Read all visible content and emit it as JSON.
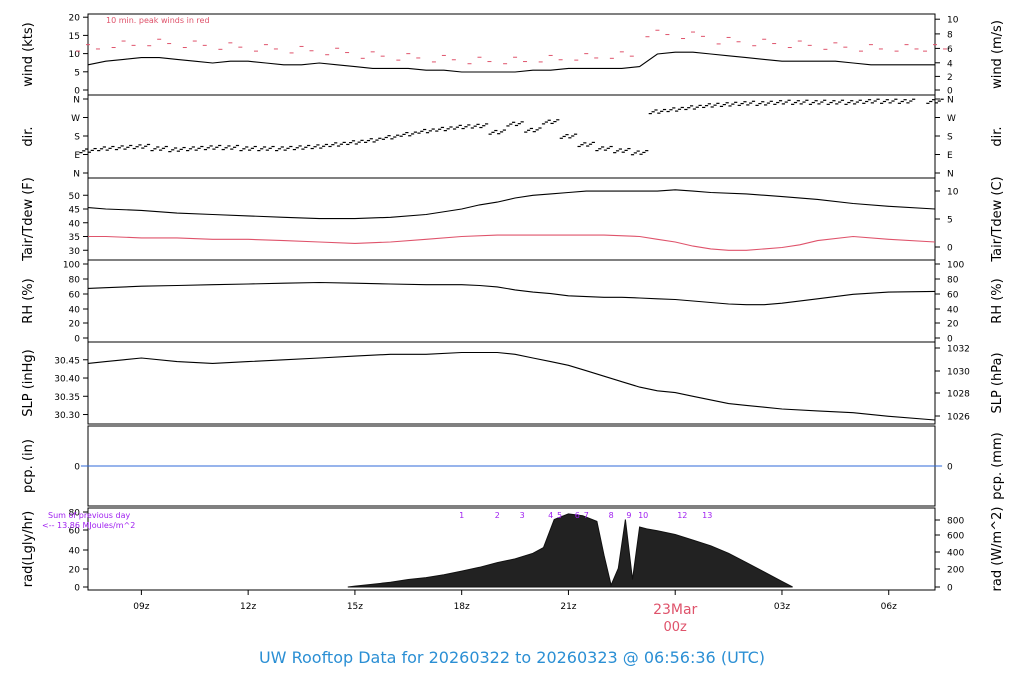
{
  "footer": {
    "title": "UW Rooftop Data for 20260322  to  20260323 @ 06:56:36  (UTC)"
  },
  "colors": {
    "axis": "#000000",
    "wind_peak": "#df536b",
    "dew": "#df536b",
    "precip": "#2f6ad8",
    "rad_label": "#a020f0",
    "date": "#df536b",
    "footer": "#2b8fd4",
    "note": "#df536b"
  },
  "chart_data": [
    {
      "id": "wind",
      "type": "line",
      "ylabel_left": "wind (kts)",
      "ylabel_right": "wind (m/s)",
      "yticks_left": [
        "0",
        "5",
        "10",
        "15",
        "20"
      ],
      "ylim_left": [
        0,
        20
      ],
      "yticks_right": [
        "0",
        "2",
        "4",
        "6",
        "8",
        "10"
      ],
      "ylim_right": [
        0,
        10.3
      ],
      "annotation": "10 min. peak winds in red",
      "series": [
        {
          "name": "wind speed",
          "x": [
            6.5,
            7,
            7.5,
            8,
            8.5,
            9,
            9.5,
            10,
            10.5,
            11,
            11.5,
            12,
            12.5,
            13,
            13.5,
            14,
            14.5,
            15,
            15.5,
            16,
            16.5,
            17,
            17.5,
            18,
            18.5,
            19,
            19.5,
            20,
            20.5,
            21,
            21.5,
            22,
            22.5,
            23,
            23.5,
            24,
            24.5,
            25,
            25.5,
            26,
            26.5,
            27,
            27.5,
            28,
            28.5,
            29,
            29.5,
            30.3
          ],
          "values": [
            7,
            8,
            8.5,
            9,
            9,
            8.5,
            8,
            7.5,
            8,
            8,
            7.5,
            7,
            7,
            7.5,
            7,
            6.5,
            6,
            6,
            6,
            5.5,
            5.5,
            5,
            5,
            5,
            5,
            5.5,
            5.5,
            6,
            6,
            6,
            6,
            6.5,
            10,
            10.5,
            10.5,
            10,
            9.5,
            9,
            8.5,
            8,
            8,
            8,
            8,
            7.5,
            7,
            7,
            7,
            7
          ]
        },
        {
          "name": "10 min. peak",
          "x": [
            6.5,
            7.5,
            8.5,
            9.5,
            10.5,
            11.5,
            12.5,
            13.5,
            14.5,
            15.5,
            16.5,
            17.5,
            18.5,
            19.5,
            20.5,
            21.5,
            22.5,
            23.5,
            24.5,
            25.5,
            26.5,
            27.5,
            28.5,
            29.5,
            30.3
          ],
          "values": [
            12,
            13,
            13.5,
            13,
            12.5,
            12,
            11.5,
            11,
            10,
            9.5,
            9,
            8.5,
            8.5,
            9,
            9.5,
            10,
            16,
            15.5,
            14,
            13.5,
            13,
            12.5,
            12,
            12,
            12
          ]
        }
      ]
    },
    {
      "id": "dir",
      "type": "scatter",
      "ylabel_left": "dir.",
      "ylabel_right": "dir.",
      "yticks_left": [
        "N",
        "E",
        "S",
        "W",
        "N"
      ],
      "ylim_left": [
        0,
        360
      ],
      "yticks_right": [
        "N",
        "E",
        "S",
        "W",
        "N"
      ],
      "series": [
        {
          "name": "wind direction",
          "x": [
            6.5,
            7,
            7.5,
            8,
            8.5,
            9,
            9.5,
            10,
            10.5,
            11,
            11.5,
            12,
            12.5,
            13,
            13.5,
            14,
            14.5,
            15,
            15.5,
            16,
            16.5,
            17,
            17.5,
            18,
            18.5,
            19,
            19.5,
            20,
            20.5,
            21,
            21.5,
            22,
            22.5,
            23,
            23.5,
            24,
            24.5,
            25,
            25.5,
            26,
            26.5,
            27,
            27.5,
            28,
            28.5,
            29,
            29.5,
            30.3
          ],
          "values": [
            110,
            120,
            125,
            130,
            120,
            115,
            120,
            125,
            125,
            120,
            120,
            120,
            125,
            130,
            140,
            150,
            160,
            175,
            190,
            205,
            215,
            225,
            230,
            200,
            240,
            210,
            250,
            180,
            140,
            120,
            110,
            100,
            300,
            310,
            320,
            330,
            335,
            340,
            340,
            345,
            345,
            345,
            345,
            345,
            350,
            350,
            350,
            350
          ]
        }
      ]
    },
    {
      "id": "temp",
      "type": "line",
      "ylabel_left": "Tair/Tdew (F)",
      "ylabel_right": "Tair/Tdew (C)",
      "yticks_left": [
        "30",
        "35",
        "40",
        "45",
        "50"
      ],
      "ylim_left": [
        29,
        53
      ],
      "yticks_right": [
        "0",
        "5",
        "10"
      ],
      "series": [
        {
          "name": "Tair",
          "x": [
            6.5,
            7,
            8,
            9,
            10,
            11,
            12,
            13,
            14,
            15,
            16,
            17,
            17.5,
            18,
            18.5,
            19,
            19.5,
            20,
            20.5,
            21,
            21.5,
            22,
            22.5,
            23,
            23.5,
            24,
            25,
            26,
            27,
            28,
            29,
            30.3
          ],
          "values": [
            45.5,
            45,
            44.5,
            43.5,
            43,
            42.5,
            42,
            41.5,
            41.5,
            42,
            43,
            45,
            46.5,
            47.5,
            49,
            50,
            50.5,
            51,
            51.5,
            51.5,
            51.5,
            51.5,
            51.5,
            52,
            51.5,
            51,
            50.5,
            49.5,
            48.5,
            47,
            46,
            45
          ]
        },
        {
          "name": "Tdew",
          "x": [
            6.5,
            7,
            8,
            9,
            10,
            11,
            12,
            13,
            14,
            15,
            16,
            17,
            18,
            19,
            20,
            21,
            22,
            22.5,
            23,
            23.5,
            24,
            24.5,
            25,
            25.5,
            26,
            26.5,
            27,
            28,
            29,
            30.3
          ],
          "values": [
            35,
            35,
            34.5,
            34.5,
            34,
            34,
            33.5,
            33,
            32.5,
            33,
            34,
            35,
            35.5,
            35.5,
            35.5,
            35.5,
            35,
            34,
            33,
            31.5,
            30.5,
            30,
            30,
            30.5,
            31,
            32,
            33.5,
            35,
            34,
            33
          ]
        }
      ]
    },
    {
      "id": "rh",
      "type": "line",
      "ylabel_left": "RH (%)",
      "ylabel_right": "RH (%)",
      "yticks_left": [
        "0",
        "20",
        "40",
        "60",
        "80",
        "100"
      ],
      "ylim_left": [
        0,
        100
      ],
      "yticks_right": [
        "0",
        "20",
        "40",
        "60",
        "80",
        "100"
      ],
      "series": [
        {
          "name": "RH",
          "x": [
            6.5,
            7,
            8,
            9,
            10,
            11,
            12,
            13,
            14,
            15,
            16,
            17,
            17.5,
            18,
            18.5,
            19,
            19.5,
            20,
            20.5,
            21,
            21.5,
            22,
            22.5,
            23,
            23.5,
            24,
            24.5,
            25,
            25.5,
            26,
            27,
            28,
            29,
            30.3
          ],
          "values": [
            67,
            68,
            70,
            71,
            72,
            73,
            74,
            75,
            74,
            73,
            72,
            72,
            71,
            69,
            65,
            62,
            60,
            57,
            56,
            55,
            55,
            54,
            53,
            52,
            50,
            48,
            46,
            45,
            45,
            47,
            53,
            59,
            62,
            63
          ]
        }
      ]
    },
    {
      "id": "slp",
      "type": "line",
      "ylabel_left": "SLP (inHg)",
      "ylabel_right": "SLP (hPa)",
      "yticks_left": [
        "30.30",
        "30.35",
        "30.40",
        "30.45"
      ],
      "ylim_left": [
        30.285,
        30.485
      ],
      "yticks_right": [
        "1026",
        "1028",
        "1030",
        "1032"
      ],
      "series": [
        {
          "name": "SLP",
          "x": [
            6.5,
            7,
            7.5,
            8,
            9,
            10,
            11,
            12,
            13,
            14,
            15,
            16,
            17,
            18,
            18.5,
            19,
            19.5,
            20,
            20.5,
            21,
            21.5,
            22,
            22.5,
            23,
            23.5,
            24,
            24.5,
            25,
            25.5,
            26,
            27,
            28,
            29,
            30.3
          ],
          "values": [
            30.44,
            30.445,
            30.45,
            30.455,
            30.445,
            30.44,
            30.445,
            30.45,
            30.455,
            30.46,
            30.465,
            30.465,
            30.47,
            30.47,
            30.465,
            30.455,
            30.445,
            30.435,
            30.42,
            30.405,
            30.39,
            30.375,
            30.365,
            30.36,
            30.35,
            30.34,
            30.33,
            30.325,
            30.32,
            30.315,
            30.31,
            30.305,
            30.295,
            30.285
          ]
        }
      ]
    },
    {
      "id": "pcp",
      "type": "line",
      "ylabel_left": "pcp. (in)",
      "ylabel_right": "pcp. (mm)",
      "yticks_left": [
        "0"
      ],
      "ylim_left": [
        0,
        1
      ],
      "yticks_right": [
        "0"
      ],
      "series": [
        {
          "name": "precip",
          "x": [
            6.3,
            30.5
          ],
          "values": [
            0,
            0
          ]
        }
      ]
    },
    {
      "id": "rad",
      "type": "area",
      "ylabel_left": "rad(Lgly/hr)",
      "ylabel_right": "rad (W/m^2)",
      "yticks_left": [
        "0",
        "20",
        "40",
        "60",
        "80"
      ],
      "ylim_left": [
        0,
        80
      ],
      "yticks_right": [
        "0",
        "200",
        "400",
        "600",
        "800"
      ],
      "annotation_lines": [
        "Sum of previous day",
        "<-- 13.86 MJoules/m^2"
      ],
      "hour_labels": [
        {
          "label": "1",
          "x": 17.0
        },
        {
          "label": "2",
          "x": 18.0
        },
        {
          "label": "3",
          "x": 18.7
        },
        {
          "label": "4",
          "x": 19.5
        },
        {
          "label": "5",
          "x": 19.75
        },
        {
          "label": "6",
          "x": 20.25
        },
        {
          "label": "7",
          "x": 20.5
        },
        {
          "label": "8",
          "x": 21.2
        },
        {
          "label": "9",
          "x": 21.7
        },
        {
          "label": "10",
          "x": 22.1
        },
        {
          "label": "12",
          "x": 23.2
        },
        {
          "label": "13",
          "x": 23.9
        }
      ],
      "series": [
        {
          "name": "solar radiation",
          "x": [
            13.8,
            14,
            14.5,
            15,
            15.5,
            16,
            16.5,
            17,
            17.5,
            18,
            18.5,
            19,
            19.3,
            19.6,
            20,
            20.4,
            20.8,
            21,
            21.2,
            21.4,
            21.6,
            21.8,
            22,
            22.2,
            22.5,
            23,
            23.5,
            24,
            24.5,
            25,
            25.5,
            26,
            26.3
          ],
          "values": [
            0,
            1,
            3,
            5,
            8,
            10,
            13,
            17,
            21,
            26,
            30,
            36,
            42,
            72,
            78,
            76,
            70,
            34,
            2,
            20,
            72,
            8,
            64,
            62,
            60,
            56,
            50,
            44,
            36,
            26,
            16,
            6,
            0
          ]
        }
      ]
    }
  ],
  "time_axis": {
    "ticks": [
      {
        "label": "09z",
        "x": 8
      },
      {
        "label": "12z",
        "x": 11
      },
      {
        "label": "15z",
        "x": 14
      },
      {
        "label": "18z",
        "x": 17
      },
      {
        "label": "21z",
        "x": 20
      },
      {
        "label": "00z",
        "x": 23
      },
      {
        "label": "03z",
        "x": 26
      },
      {
        "label": "06z",
        "x": 29
      }
    ],
    "date_label": "23Mar",
    "date_sublabel": "00z"
  }
}
